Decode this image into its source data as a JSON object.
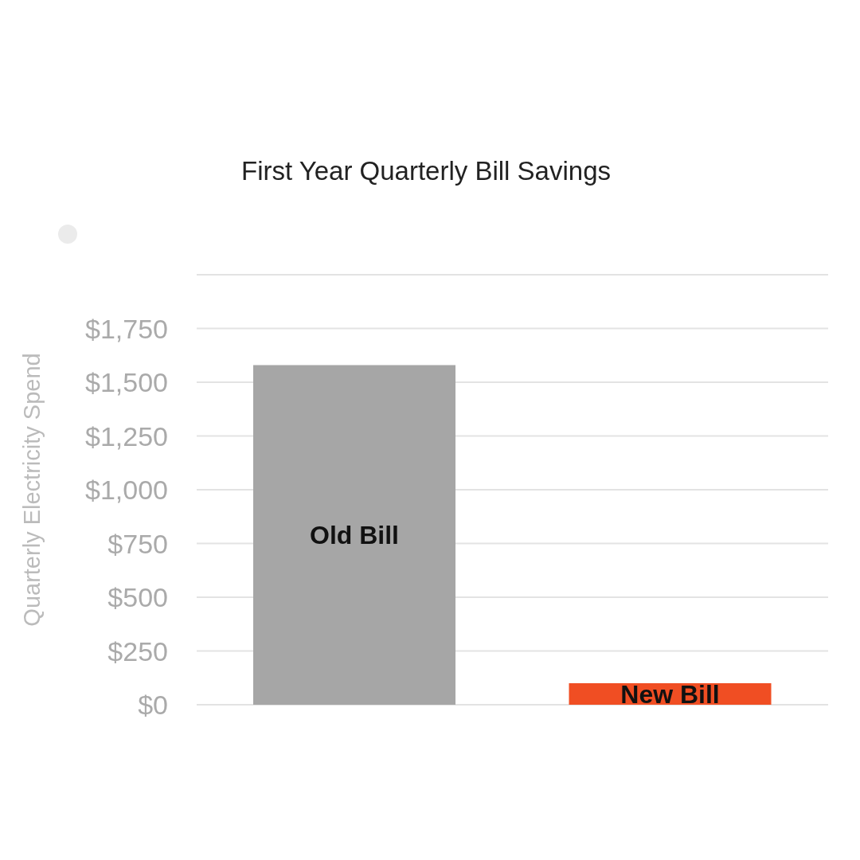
{
  "chart_data": {
    "type": "bar",
    "title": "First Year Quarterly Bill Savings",
    "ylabel": "Quarterly Electricity Spend",
    "categories": [
      "Old Bill",
      "New Bill"
    ],
    "values": [
      1580,
      100
    ],
    "colors": [
      "#a6a6a6",
      "#f04e23"
    ],
    "ylim": [
      0,
      2000
    ],
    "yticks": [
      {
        "value": 0,
        "label": "$0"
      },
      {
        "value": 250,
        "label": "$250"
      },
      {
        "value": 500,
        "label": "$500"
      },
      {
        "value": 750,
        "label": "$750"
      },
      {
        "value": 1000,
        "label": "$1,000"
      },
      {
        "value": 1250,
        "label": "$1,250"
      },
      {
        "value": 1500,
        "label": "$1,500"
      },
      {
        "value": 1750,
        "label": "$1,750"
      },
      {
        "value": 2000,
        "label": null
      }
    ],
    "grid": "y",
    "tick_labels": "y"
  }
}
